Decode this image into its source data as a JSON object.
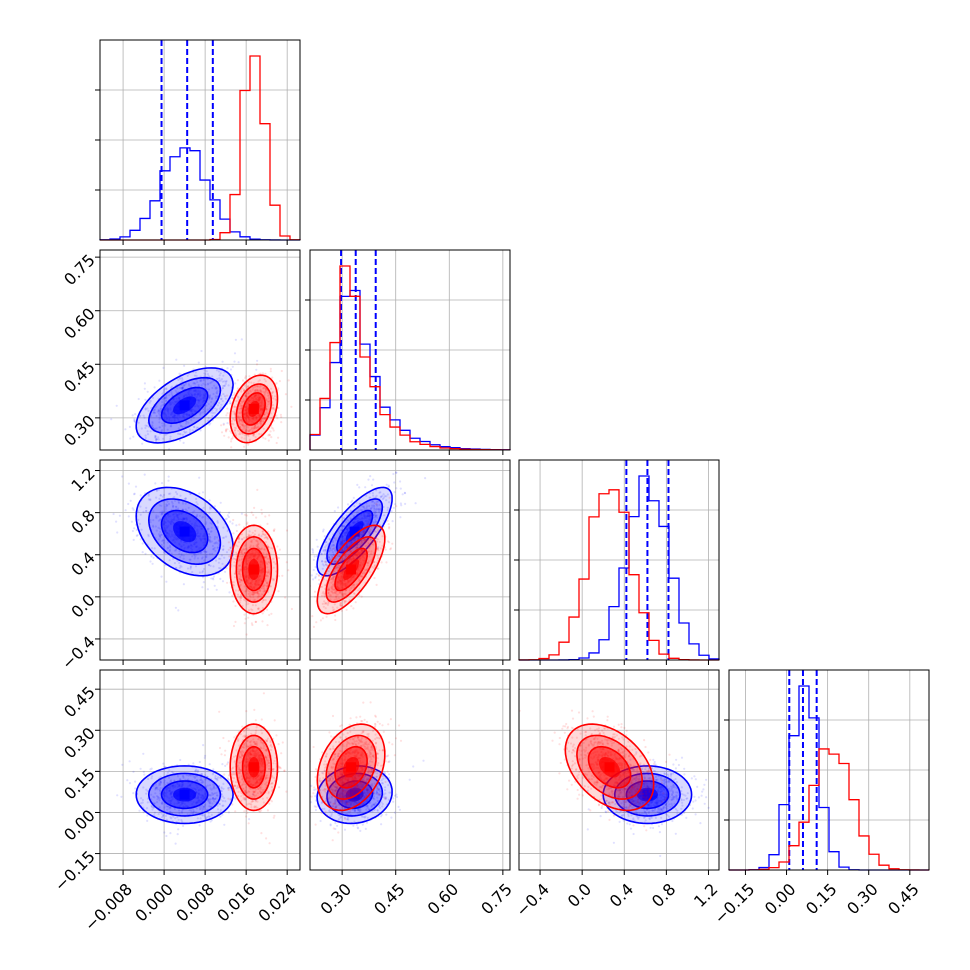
{
  "colors": {
    "blue": "#0000ff",
    "red": "#ff0000",
    "grid": "#b0b0b0",
    "axis": "#000000"
  },
  "chart_data": {
    "type": "corner",
    "grid": true,
    "params": [
      {
        "range": [
          -0.0125,
          0.0265
        ],
        "ticks": [
          -0.008,
          0.0,
          0.008,
          0.016,
          0.024
        ],
        "tick_labels": [
          "−0.008",
          "0.000",
          "0.008",
          "0.016",
          "0.024"
        ]
      },
      {
        "range": [
          0.21,
          0.77
        ],
        "ticks": [
          0.3,
          0.45,
          0.6,
          0.75
        ],
        "tick_labels": [
          "0.30",
          "0.45",
          "0.60",
          "0.75"
        ]
      },
      {
        "range": [
          -0.6,
          1.3
        ],
        "ticks": [
          -0.4,
          0.0,
          0.4,
          0.8,
          1.2
        ],
        "tick_labels": [
          "−0.4",
          "0.0",
          "0.4",
          "0.8",
          "1.2"
        ]
      },
      {
        "range": [
          -0.21,
          0.52
        ],
        "ticks": [
          -0.15,
          0.0,
          0.15,
          0.3,
          0.45
        ],
        "tick_labels": [
          "−0.15",
          "0.00",
          "0.15",
          "0.30",
          "0.45"
        ]
      }
    ],
    "series": [
      {
        "color": "blue",
        "mean": [
          0.004,
          0.335,
          0.62,
          0.065
        ],
        "sd": [
          0.0045,
          0.05,
          0.2,
          0.05
        ],
        "corr": [
          [
            1,
            0.55,
            -0.35,
            0.0
          ],
          [
            0.55,
            1,
            0.75,
            0.1
          ],
          [
            -0.35,
            0.75,
            1,
            0.0
          ],
          [
            0.0,
            0.1,
            0.0,
            1
          ]
        ],
        "quantiles": [
          [
            -0.0005,
            0.0045,
            0.0095
          ],
          [
            0.297,
            0.338,
            0.394
          ],
          [
            0.42,
            0.62,
            0.82
          ],
          [
            0.01,
            0.06,
            0.11
          ]
        ]
      },
      {
        "color": "red",
        "mean": [
          0.0175,
          0.325,
          0.26,
          0.165
        ],
        "sd": [
          0.0022,
          0.045,
          0.2,
          0.075
        ],
        "corr": [
          [
            1,
            0.3,
            0.0,
            0.0
          ],
          [
            0.3,
            1,
            0.7,
            0.3
          ],
          [
            0.0,
            0.7,
            1,
            -0.4
          ],
          [
            0.0,
            0.3,
            -0.4,
            1
          ]
        ]
      }
    ]
  }
}
